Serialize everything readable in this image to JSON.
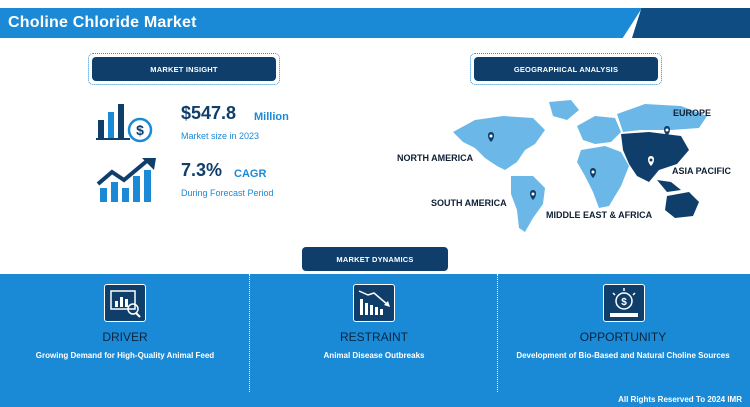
{
  "header": {
    "title": "Choline Chloride Market"
  },
  "insight": {
    "label": "MARKET INSIGHT",
    "market_value": "$547.8",
    "market_unit": "Million",
    "market_label": "Market size in 2023",
    "cagr_value": "7.3%",
    "cagr_unit": "CAGR",
    "cagr_label": "During Forecast Period"
  },
  "geo": {
    "label": "GEOGRAPHICAL ANALYSIS",
    "regions": {
      "europe": "EUROPE",
      "north_america": "NORTH AMERICA",
      "asia_pacific": "ASIA PACIFIC",
      "south_america": "SOUTH AMERICA",
      "mea": "MIDDLE EAST & AFRICA"
    }
  },
  "dynamics": {
    "label": "MARKET DYNAMICS",
    "driver": {
      "title": "DRIVER",
      "text": "Growing Demand for High-Quality Animal Feed"
    },
    "restraint": {
      "title": "RESTRAINT",
      "text": "Animal Disease Outbreaks"
    },
    "opportunity": {
      "title": "OPPORTUNITY",
      "text": "Development of Bio-Based and Natural Choline Sources"
    }
  },
  "footer": {
    "copyright": "All Rights Reserved To 2024 IMR"
  },
  "colors": {
    "primary": "#1b8ad6",
    "navy": "#0f3e6b",
    "map_light": "#6bb8e8",
    "map_dark": "#0f3e6b"
  }
}
